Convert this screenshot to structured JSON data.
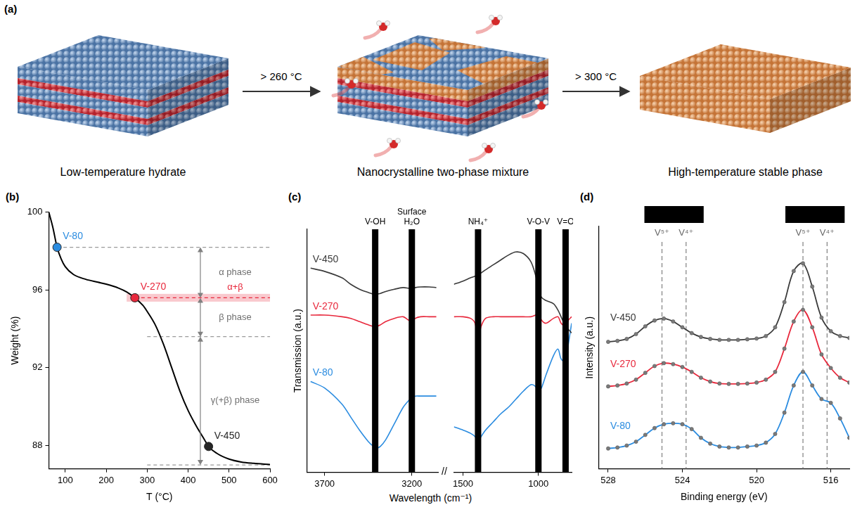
{
  "diagram": {
    "panel_label": "(a)",
    "stages": [
      "Low-temperature hydrate",
      "Nanocrystalline two-phase mixture",
      "High-temperature stable phase"
    ],
    "transitions": [
      "> 260 °C",
      "> 300 °C"
    ]
  },
  "chart_data": [
    {
      "panel_label": "(b)",
      "type": "line",
      "x_label": "T (°C)",
      "y_label": "Weight (%)",
      "xlim": [
        60,
        600
      ],
      "xticks": [
        100,
        200,
        300,
        400,
        500,
        600
      ],
      "ylim": [
        86.8,
        100
      ],
      "yticks": [
        88,
        92,
        96,
        100
      ],
      "grid": false,
      "x": [
        60,
        70,
        80,
        90,
        100,
        120,
        150,
        180,
        200,
        230,
        250,
        270,
        290,
        300,
        320,
        340,
        360,
        380,
        400,
        420,
        440,
        450,
        470,
        500,
        530,
        560,
        600
      ],
      "series": [
        {
          "color": "#000000",
          "values": [
            100,
            99.2,
            98.2,
            97.6,
            97.2,
            96.8,
            96.55,
            96.4,
            96.3,
            96.1,
            95.9,
            95.6,
            95.2,
            94.9,
            94.2,
            93.2,
            92.0,
            90.8,
            89.8,
            89.0,
            88.3,
            87.95,
            87.6,
            87.3,
            87.15,
            87.08,
            87.02
          ]
        }
      ],
      "markers": [
        {
          "label": "V-80",
          "x": 80,
          "y": 98.2,
          "color": "#2b8ce0"
        },
        {
          "label": "V-270",
          "x": 270,
          "y": 95.6,
          "color": "#e8283c"
        },
        {
          "label": "V-450",
          "x": 450,
          "y": 87.95,
          "color": "#262626"
        }
      ],
      "levels": [
        {
          "y": 98.2,
          "x_from": 80
        },
        {
          "y": 95.6,
          "x_from": 270,
          "color": "#e8283c"
        },
        {
          "y": 93.6,
          "x_from": 300
        },
        {
          "y": 87.0,
          "x_from": 300
        }
      ],
      "band": {
        "label": "α+β",
        "y_from": 95.4,
        "y_to": 95.8,
        "x_from": 250,
        "color": "#e8283c"
      },
      "phase_arrow_x": 430,
      "phases": [
        {
          "label": "α phase",
          "y_from": 98.2,
          "y_to": 95.6
        },
        {
          "label": "β phase",
          "y_from": 95.6,
          "y_to": 93.6
        },
        {
          "label": "γ(+β) phase",
          "y_from": 93.6,
          "y_to": 87.0
        }
      ]
    },
    {
      "panel_label": "(c)",
      "type": "line",
      "x_label": "Wavelength (cm⁻¹)",
      "y_label": "Transmission (a.u.)",
      "ylim": [
        0,
        7.5
      ],
      "tick_labels": "x",
      "grid": false,
      "axis_break": "//",
      "segments": [
        {
          "xlim": [
            3800,
            3050
          ],
          "xticks": [
            3700,
            3200
          ],
          "x": [
            3780,
            3700,
            3600,
            3550,
            3500,
            3450,
            3420,
            3400,
            3380,
            3350,
            3300,
            3250,
            3220,
            3200,
            3180,
            3150,
            3100,
            3060
          ]
        },
        {
          "xlim": [
            1560,
            780
          ],
          "xticks": [
            1500,
            1000
          ],
          "x": [
            1560,
            1500,
            1450,
            1420,
            1400,
            1380,
            1350,
            1300,
            1250,
            1200,
            1150,
            1100,
            1050,
            1020,
            1000,
            980,
            950,
            900,
            870,
            850,
            820,
            800,
            780
          ]
        }
      ],
      "series": [
        {
          "name": "V-450",
          "color": "#3a3a3a",
          "values": [
            [
              6.3,
              6.2,
              6.0,
              5.8,
              5.65,
              5.55,
              5.5,
              5.5,
              5.52,
              5.58,
              5.65,
              5.7,
              5.68,
              5.66,
              5.7,
              5.72,
              5.72,
              5.7
            ],
            [
              5.8,
              5.9,
              6.0,
              6.05,
              6.1,
              6.15,
              6.25,
              6.4,
              6.55,
              6.7,
              6.8,
              6.75,
              6.5,
              6.1,
              5.7,
              5.4,
              5.3,
              5.2,
              5.0,
              4.8,
              4.5,
              4.4,
              4.3
            ]
          ]
        },
        {
          "name": "V-270",
          "color": "#e8283c",
          "values": [
            [
              4.85,
              4.85,
              4.8,
              4.75,
              4.65,
              4.55,
              4.5,
              4.5,
              4.55,
              4.65,
              4.75,
              4.8,
              4.7,
              4.65,
              4.75,
              4.8,
              4.8,
              4.8
            ],
            [
              4.8,
              4.8,
              4.75,
              4.6,
              4.1,
              4.5,
              4.75,
              4.8,
              4.8,
              4.8,
              4.8,
              4.8,
              4.8,
              4.85,
              4.9,
              4.7,
              4.6,
              4.75,
              4.8,
              4.6,
              4.5,
              4.7,
              4.8
            ]
          ]
        },
        {
          "name": "V-80",
          "color": "#2b8ce0",
          "values": [
            [
              2.8,
              2.6,
              2.1,
              1.7,
              1.3,
              0.95,
              0.8,
              0.75,
              0.8,
              1.0,
              1.5,
              2.0,
              2.2,
              2.3,
              2.35,
              2.35,
              2.35,
              2.35
            ],
            [
              1.4,
              1.3,
              1.2,
              1.1,
              0.95,
              1.1,
              1.3,
              1.55,
              1.8,
              2.0,
              2.25,
              2.5,
              2.7,
              2.65,
              2.5,
              2.6,
              3.0,
              3.6,
              3.8,
              3.5,
              3.4,
              4.0,
              4.6
            ]
          ]
        }
      ],
      "annotations": [
        {
          "x": 3410,
          "label": "V-OH"
        },
        {
          "x": 3200,
          "label": "Surface H₂O"
        },
        {
          "x": 1400,
          "label": "NH₄⁺"
        },
        {
          "x": 1000,
          "label": "V-O-V"
        },
        {
          "x": 820,
          "label": "V=O"
        }
      ]
    },
    {
      "panel_label": "(d)",
      "type": "line",
      "x_label": "Binding energy (eV)",
      "y_label": "Intensity (a.u.)",
      "xlim": [
        528.5,
        515
      ],
      "xticks": [
        528,
        524,
        520,
        516
      ],
      "ylim": [
        0,
        12.5
      ],
      "tick_labels": "x",
      "grid": false,
      "x": [
        528,
        527.5,
        527,
        526.5,
        526,
        525.5,
        525,
        524.5,
        524,
        523.5,
        523,
        522.5,
        522,
        521.5,
        521,
        520.5,
        520,
        519.5,
        519,
        518.5,
        518,
        517.5,
        517,
        516.5,
        516,
        515.5,
        515
      ],
      "series": [
        {
          "name": "V-450",
          "color": "#3a3a3a",
          "marker": "circle",
          "values": [
            6.55,
            6.6,
            6.7,
            6.95,
            7.35,
            7.65,
            7.75,
            7.6,
            7.3,
            7.0,
            6.8,
            6.7,
            6.65,
            6.65,
            6.65,
            6.68,
            6.72,
            6.85,
            7.3,
            8.6,
            10.2,
            10.6,
            9.4,
            7.8,
            7.1,
            6.85,
            6.75
          ]
        },
        {
          "name": "V-270",
          "color": "#e8283c",
          "marker": "circle",
          "values": [
            4.25,
            4.3,
            4.4,
            4.6,
            4.95,
            5.3,
            5.45,
            5.4,
            5.25,
            5.0,
            4.7,
            4.5,
            4.4,
            4.38,
            4.38,
            4.4,
            4.45,
            4.6,
            5.0,
            6.2,
            7.6,
            8.2,
            7.3,
            5.9,
            5.2,
            4.7,
            4.45
          ]
        },
        {
          "name": "V-80",
          "color": "#2b8ce0",
          "marker": "circle",
          "values": [
            1.05,
            1.1,
            1.2,
            1.4,
            1.75,
            2.1,
            2.3,
            2.35,
            2.3,
            2.05,
            1.6,
            1.3,
            1.15,
            1.1,
            1.1,
            1.15,
            1.2,
            1.35,
            1.8,
            2.9,
            4.3,
            5.0,
            4.3,
            3.6,
            3.4,
            2.6,
            1.6
          ]
        }
      ],
      "reference_lines": [
        {
          "x": 525.1,
          "label": "V⁵⁺"
        },
        {
          "x": 523.8,
          "label": "V⁴⁺"
        },
        {
          "x": 517.5,
          "label": "V⁵⁺"
        },
        {
          "x": 516.2,
          "label": "V⁴⁺"
        }
      ]
    }
  ]
}
